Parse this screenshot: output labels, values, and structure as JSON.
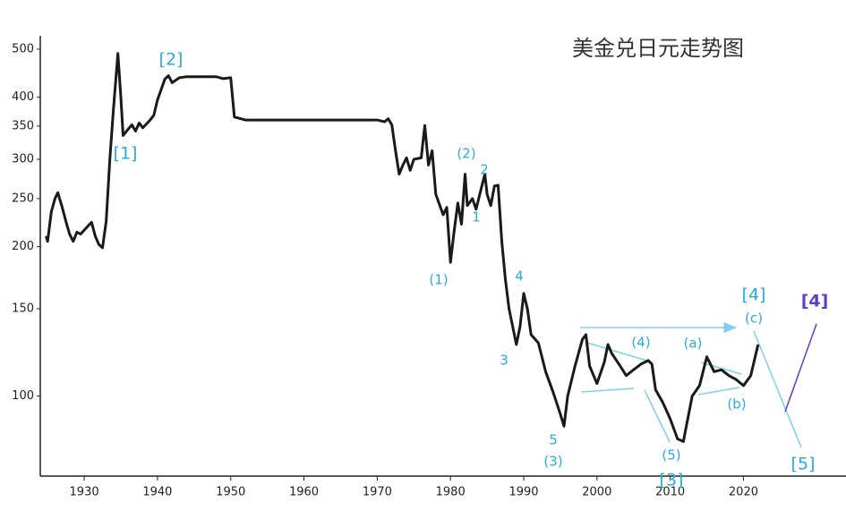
{
  "chart_data": {
    "type": "line",
    "title": "美金兑日元走势图",
    "log_scale": true,
    "color": "#1a1a1a",
    "xlim": [
      1924,
      2034
    ],
    "xticks": [
      1930,
      1940,
      1950,
      1960,
      1970,
      1980,
      1990,
      2000,
      2010,
      2020
    ],
    "ylim": [
      69,
      532
    ],
    "yticks": [
      100,
      150,
      200,
      250,
      300,
      350,
      400,
      500
    ],
    "x": [
      1924.8,
      1925,
      1925.5,
      1926,
      1926.4,
      1927,
      1927.5,
      1928,
      1928.5,
      1929,
      1929.5,
      1930,
      1930.5,
      1931,
      1931.5,
      1932,
      1932.5,
      1933,
      1933.5,
      1934,
      1934.6,
      1935,
      1935.3,
      1936,
      1936.5,
      1937,
      1937.5,
      1938,
      1939,
      1939.5,
      1940,
      1941,
      1941.5,
      1942,
      1943,
      1944,
      1946,
      1948,
      1949,
      1950,
      1950.5,
      1952,
      1960,
      1970,
      1971,
      1971.5,
      1972,
      1972.5,
      1973,
      1973.5,
      1974,
      1974.5,
      1975,
      1976,
      1976.5,
      1977,
      1977.5,
      1978,
      1979,
      1979.5,
      1980,
      1980.5,
      1981,
      1981.5,
      1982,
      1982.3,
      1983,
      1983.5,
      1984,
      1984.7,
      1985,
      1985.5,
      1986,
      1986.5,
      1987,
      1987.5,
      1988,
      1989,
      1989.5,
      1990,
      1990.5,
      1991,
      1992,
      1993,
      1994,
      1995,
      1995.5,
      1996,
      1997,
      1998,
      1998.5,
      1999,
      2000,
      2001,
      2001.5,
      2002,
      2003,
      2004,
      2005,
      2006,
      2007,
      2007.5,
      2008,
      2009,
      2010,
      2011,
      2011.8,
      2012,
      2013,
      2014,
      2015,
      2016,
      2017,
      2018,
      2019,
      2020,
      2021,
      2022
    ],
    "values": [
      210,
      205,
      235,
      250,
      257,
      240,
      225,
      212,
      205,
      214,
      212,
      216,
      220,
      224,
      210,
      202,
      199,
      225,
      300,
      380,
      490,
      400,
      335,
      345,
      352,
      342,
      355,
      347,
      360,
      368,
      395,
      435,
      442,
      428,
      438,
      440,
      440,
      440,
      436,
      438,
      365,
      360,
      360,
      360,
      357,
      362,
      352,
      312,
      280,
      292,
      302,
      285,
      300,
      302,
      351,
      292,
      312,
      255,
      232,
      240,
      186,
      215,
      245,
      222,
      280,
      242,
      250,
      238,
      255,
      280,
      255,
      242,
      265,
      266,
      205,
      172,
      150,
      127,
      138,
      161,
      150,
      133,
      128,
      112,
      102,
      92,
      87,
      100,
      115,
      130,
      133,
      115,
      106,
      117,
      127,
      122,
      116,
      110,
      113,
      116,
      118,
      116,
      103,
      97,
      90,
      82,
      81,
      84,
      100,
      105,
      120,
      112,
      113,
      110,
      108,
      105,
      110,
      127
    ],
    "annotations": [
      {
        "text": "[2]",
        "color": "#29abe2"
      },
      {
        "text": "[1]",
        "color": "#29abe2"
      },
      {
        "text": "(1)",
        "color": "#29abe2"
      },
      {
        "text": "(2)",
        "color": "#29abe2"
      },
      {
        "text": "2",
        "color": "#29abe2"
      },
      {
        "text": "1",
        "color": "#29abe2"
      },
      {
        "text": "4",
        "color": "#29abe2"
      },
      {
        "text": "3",
        "color": "#29abe2"
      },
      {
        "text": "5",
        "color": "#29abe2"
      },
      {
        "text": "(3)",
        "color": "#29abe2"
      },
      {
        "text": "(4)",
        "color": "#29abe2"
      },
      {
        "text": "(a)",
        "color": "#29abe2"
      },
      {
        "text": "(b)",
        "color": "#29abe2"
      },
      {
        "text": "(5)",
        "color": "#29abe2"
      },
      {
        "text": "[3]",
        "color": "#29abe2"
      },
      {
        "text": "[4]",
        "color": "#29abe2"
      },
      {
        "text": "(c)",
        "color": "#29abe2"
      },
      {
        "text": "[5]",
        "color": "#29abe2"
      },
      {
        "text": "[4]",
        "color": "#5b3fc4"
      }
    ]
  }
}
